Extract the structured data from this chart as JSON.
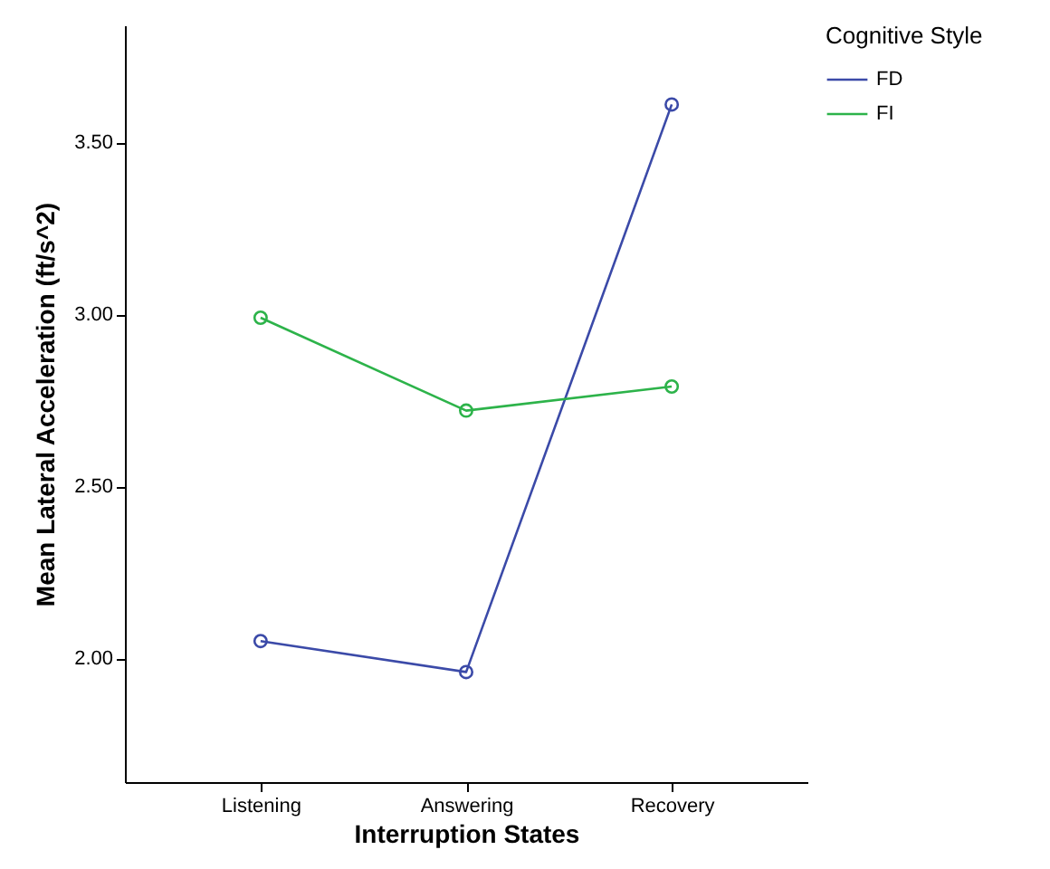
{
  "chart_data": {
    "type": "line",
    "xlabel": "Interruption States",
    "ylabel": "Mean Lateral Acceleration (ft/s^2)",
    "legend_title": "Cognitive Style",
    "categories": [
      "Listening",
      "Answering",
      "Recovery"
    ],
    "series": [
      {
        "name": "FD",
        "color": "#3b4aa8",
        "values": [
          2.05,
          1.96,
          3.61
        ]
      },
      {
        "name": "FI",
        "color": "#2db34a",
        "values": [
          2.99,
          2.72,
          2.79
        ]
      }
    ],
    "ylim": [
      1.64,
      3.84
    ],
    "yticks": [
      {
        "value": 2,
        "label": "2.00"
      },
      {
        "value": 2.5,
        "label": "2.50"
      },
      {
        "value": 3,
        "label": "3.00"
      },
      {
        "value": 3.5,
        "label": "3.50"
      }
    ],
    "grid": false,
    "legend": "top right",
    "marker": "circle",
    "line_style": "solid"
  }
}
